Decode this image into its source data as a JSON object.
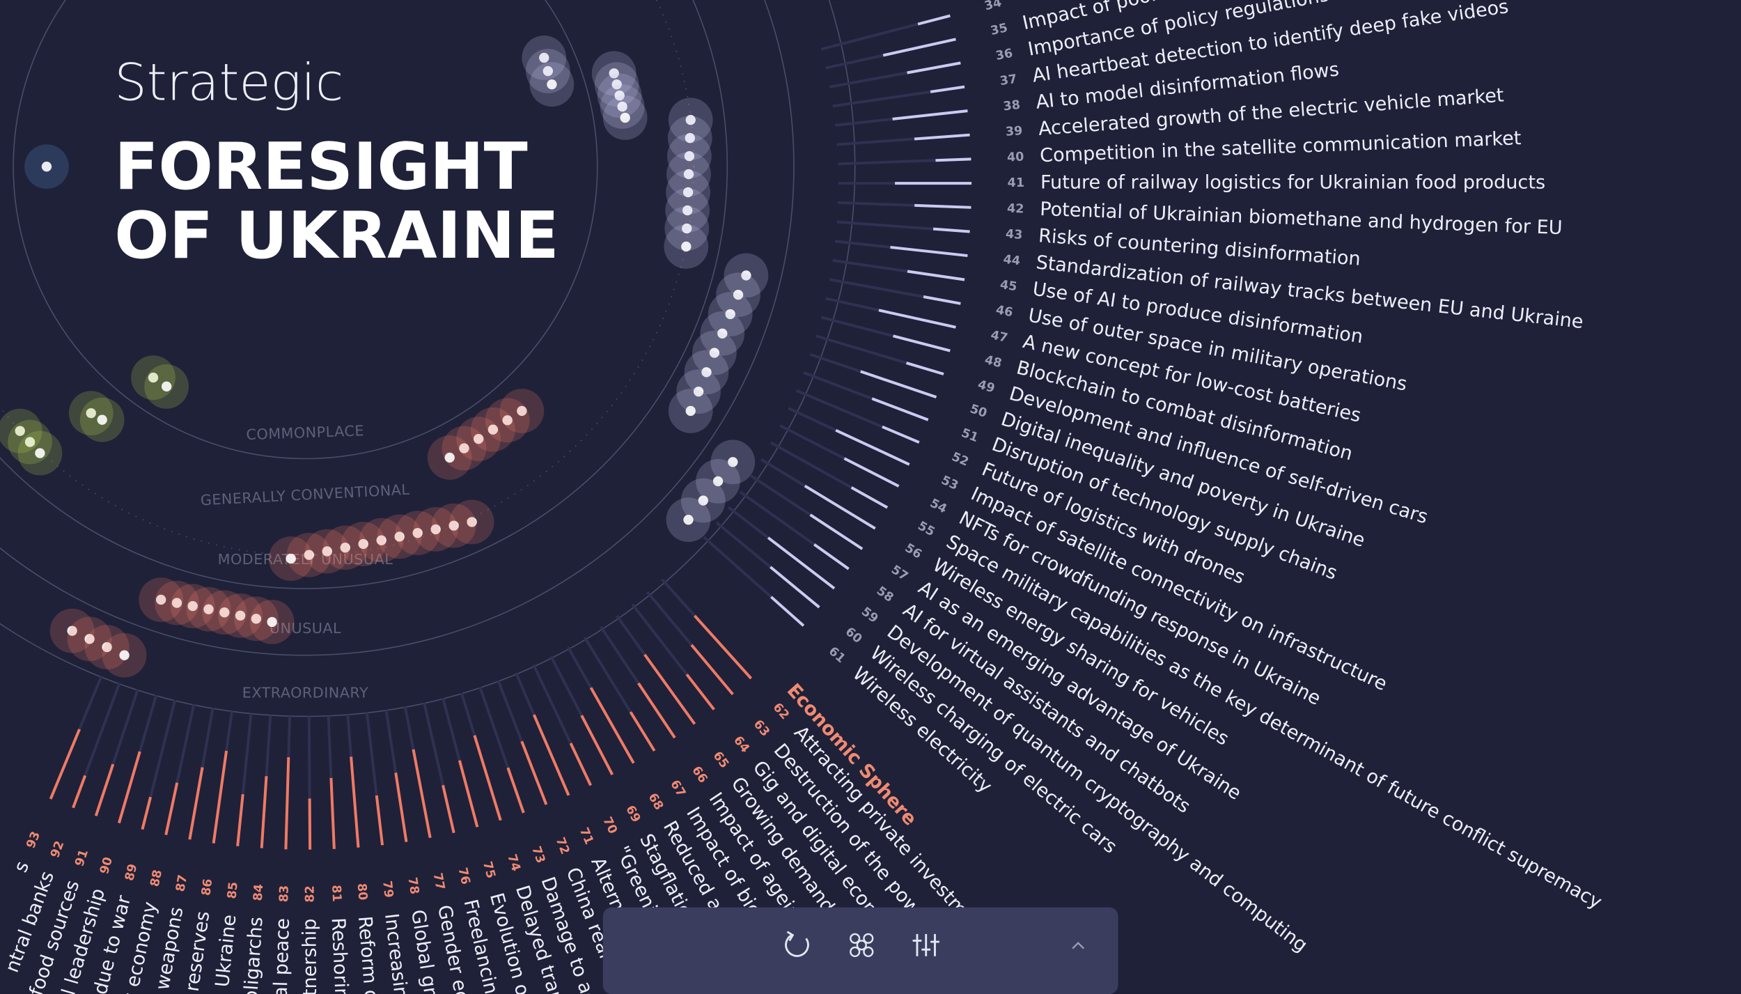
{
  "header": {
    "title_line1": "Strategic",
    "title_line2": "FORESIGHT",
    "title_line3": "OF UKRAINE"
  },
  "rings": [
    "COMMONPLACE",
    "GENERALLY CONVENTIONAL",
    "MODERATELY UNUSUAL",
    "UNUSUAL",
    "EXTRAORDINARY"
  ],
  "sector": "Economic Sphere",
  "items": [
    {
      "number": 34
    },
    {
      "number": 35,
      "text": "Impact of poor r"
    },
    {
      "number": 36,
      "text": "Importance of policy regulations to figh"
    },
    {
      "number": 37,
      "text": "AI heartbeat detection to identify deep fake videos"
    },
    {
      "number": 38,
      "text": "AI to model disinformation flows"
    },
    {
      "number": 39,
      "text": "Accelerated growth of the electric vehicle market"
    },
    {
      "number": 40,
      "text": "Competition in the satellite communication market"
    },
    {
      "number": 41,
      "text": "Future of railway logistics for Ukrainian food products"
    },
    {
      "number": 42,
      "text": "Potential of Ukrainian biomethane and hydrogen for EU"
    },
    {
      "number": 43,
      "text": "Risks of countering disinformation"
    },
    {
      "number": 44,
      "text": "Standardization of railway tracks between EU and Ukraine"
    },
    {
      "number": 45,
      "text": "Use of AI to produce disinformation"
    },
    {
      "number": 46,
      "text": "Use of outer space in military operations"
    },
    {
      "number": 47,
      "text": "A new concept for low-cost batteries"
    },
    {
      "number": 48,
      "text": "Blockchain to combat disinformation"
    },
    {
      "number": 49,
      "text": "Development and influence of self-driven cars"
    },
    {
      "number": 50,
      "text": "Digital inequality and poverty in Ukraine"
    },
    {
      "number": 51,
      "text": "Disruption of technology supply chains"
    },
    {
      "number": 52,
      "text": "Future of logistics with drones"
    },
    {
      "number": 53,
      "text": "Impact of satellite connectivity on infrastructure"
    },
    {
      "number": 54,
      "text": "NFTs for crowdfunding response in Ukraine"
    },
    {
      "number": 55,
      "text": "Space military capabilities as the key determinant of future conflict supremacy"
    },
    {
      "number": 56,
      "text": "Wireless energy sharing for vehicles"
    },
    {
      "number": 57,
      "text": "AI as an emerging advantage of Ukraine"
    },
    {
      "number": 58,
      "text": "AI for virtual assistants and chatbots"
    },
    {
      "number": 59,
      "text": "Development of quantum cryptography and computing"
    },
    {
      "number": 60,
      "text": "Wireless charging of electric cars"
    },
    {
      "number": 61,
      "text": "Wireless electricity"
    },
    {
      "number": 62,
      "text": "Attracting private investmen"
    },
    {
      "number": 63,
      "text": "Destruction of the powe"
    },
    {
      "number": 64,
      "text": "Gig and digital econo"
    },
    {
      "number": 65,
      "text": "Growing demand f"
    },
    {
      "number": 66,
      "text": "Impact of ageing"
    },
    {
      "number": 67,
      "text": "Impact of bio"
    },
    {
      "number": 68,
      "text": "Reduced av"
    },
    {
      "number": 69,
      "text": "Stagflatio"
    },
    {
      "number": 70,
      "text": "\"Greenin"
    },
    {
      "number": 71,
      "text": "Alterna"
    },
    {
      "number": 72,
      "text": "China real-e"
    },
    {
      "number": 73,
      "text": "Damage to agr"
    },
    {
      "number": 74,
      "text": "Delayed trans"
    },
    {
      "number": 75,
      "text": "Evolution of"
    },
    {
      "number": 76,
      "text": "Freelancing"
    },
    {
      "number": 77,
      "text": "Gender equ"
    },
    {
      "number": 78,
      "text": "Global gro"
    },
    {
      "number": 79,
      "text": "Increasing"
    },
    {
      "number": 80,
      "text": "Reform of"
    },
    {
      "number": 81,
      "text": "Reshoring"
    },
    {
      "number": 82,
      "text": "artnership"
    },
    {
      "number": 83,
      "text": "bal peace"
    },
    {
      "number": 84,
      "text": "oligarchs"
    },
    {
      "number": 85,
      "text": "to Ukraine"
    },
    {
      "number": 86,
      "text": "y reserves"
    },
    {
      "number": 87,
      "text": "al weapons"
    },
    {
      "number": 88,
      "text": "'s economy"
    },
    {
      "number": 89,
      "text": "s due to war"
    },
    {
      "number": 90,
      "text": "ral leadership"
    },
    {
      "number": 91,
      "text": "e food sources"
    },
    {
      "number": 92,
      "text": "ntral banks"
    },
    {
      "number": 93,
      "text": "s"
    }
  ]
}
